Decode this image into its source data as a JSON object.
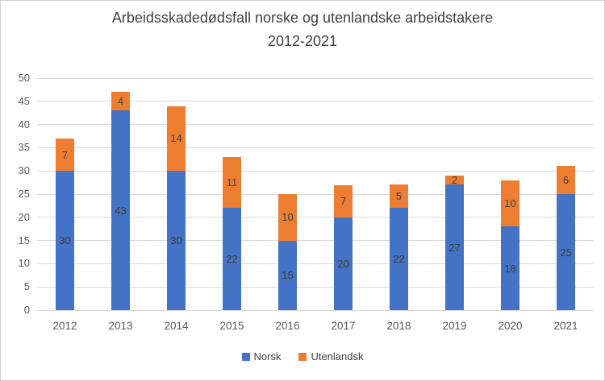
{
  "chart_data": {
    "type": "bar",
    "stacked": true,
    "title": "Arbeidsskadedødsfall norske og utenlandske arbeidstakere 2012-2021",
    "title_lines": [
      "Arbeidsskadedødsfall norske og utenlandske arbeidstakere",
      "2012-2021"
    ],
    "categories": [
      "2012",
      "2013",
      "2014",
      "2015",
      "2016",
      "2017",
      "2018",
      "2019",
      "2020",
      "2021"
    ],
    "series": [
      {
        "name": "Norsk",
        "color": "#4472C4",
        "values": [
          30,
          43,
          30,
          22,
          15,
          20,
          22,
          27,
          18,
          25
        ]
      },
      {
        "name": "Utenlandsk",
        "color": "#ED7D31",
        "values": [
          7,
          4,
          14,
          11,
          10,
          7,
          5,
          2,
          10,
          6
        ]
      }
    ],
    "totals": [
      37,
      47,
      44,
      33,
      25,
      27,
      27,
      29,
      28,
      31
    ],
    "ylim": [
      0,
      50
    ],
    "ytick_step": 5,
    "yticks": [
      0,
      5,
      10,
      15,
      20,
      25,
      30,
      35,
      40,
      45,
      50
    ],
    "grid": "horizontal",
    "data_labels": true,
    "legend_position": "bottom",
    "grid_color": "#D9D9D9",
    "axis_label_color": "#595959",
    "data_label_color": "#404040",
    "title_color": "#404040"
  }
}
